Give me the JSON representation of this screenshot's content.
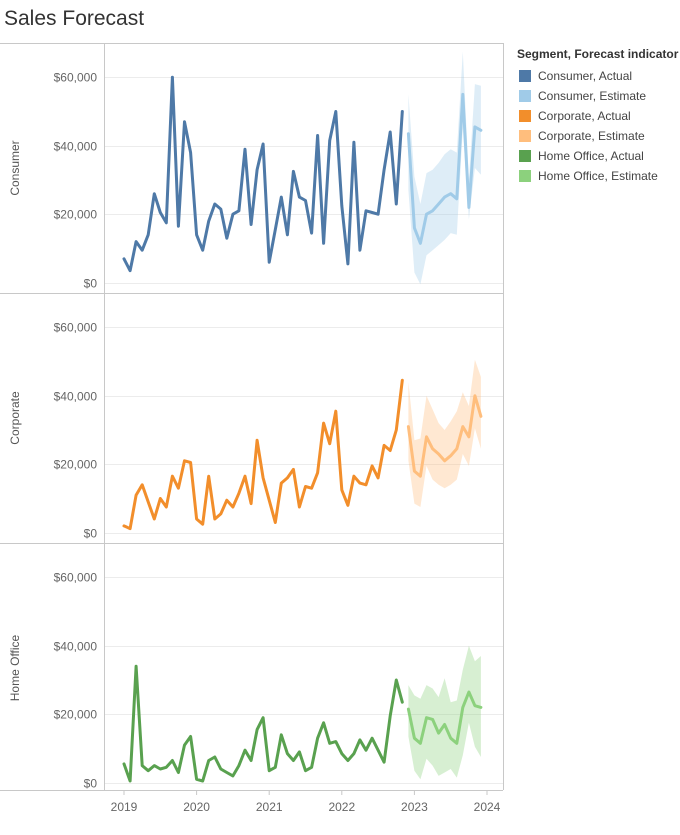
{
  "title": "Sales Forecast",
  "legend": {
    "title": "Segment, Forecast indicator",
    "items": [
      {
        "label": "Consumer, Actual",
        "color": "#4e79a7"
      },
      {
        "label": "Consumer, Estimate",
        "color": "#a0cbe8"
      },
      {
        "label": "Corporate, Actual",
        "color": "#f28e2b"
      },
      {
        "label": "Corporate, Estimate",
        "color": "#ffbe7d"
      },
      {
        "label": "Home Office, Actual",
        "color": "#59a14f"
      },
      {
        "label": "Home Office, Estimate",
        "color": "#8cd17d"
      }
    ]
  },
  "chart_data": {
    "type": "line",
    "title": "Sales Forecast",
    "x_tick_labels": [
      "2019",
      "2020",
      "2021",
      "2022",
      "2023",
      "2024"
    ],
    "xlim": [
      "2019-01",
      "2024-01"
    ],
    "y_tick_labels": [
      "$0",
      "$20,000",
      "$40,000",
      "$60,000"
    ],
    "y_ticks": [
      0,
      20000,
      40000,
      60000
    ],
    "ylim": [
      -3000,
      70000
    ],
    "grid": true,
    "legend_position": "right",
    "panels": [
      {
        "name": "Consumer",
        "actual": {
          "color": "#4e79a7",
          "x": [
            "2019-01",
            "2019-02",
            "2019-03",
            "2019-04",
            "2019-05",
            "2019-06",
            "2019-07",
            "2019-08",
            "2019-09",
            "2019-10",
            "2019-11",
            "2019-12",
            "2020-01",
            "2020-02",
            "2020-03",
            "2020-04",
            "2020-05",
            "2020-06",
            "2020-07",
            "2020-08",
            "2020-09",
            "2020-10",
            "2020-11",
            "2020-12",
            "2021-01",
            "2021-02",
            "2021-03",
            "2021-04",
            "2021-05",
            "2021-06",
            "2021-07",
            "2021-08",
            "2021-09",
            "2021-10",
            "2021-11",
            "2021-12",
            "2022-01",
            "2022-02",
            "2022-03",
            "2022-04",
            "2022-05",
            "2022-06",
            "2022-07",
            "2022-08",
            "2022-09",
            "2022-10",
            "2022-11",
            "2022-12"
          ],
          "y": [
            7000,
            3500,
            12000,
            9500,
            14000,
            26000,
            20500,
            17500,
            60000,
            16500,
            47000,
            38000,
            14000,
            9500,
            18000,
            23000,
            21500,
            13000,
            20000,
            21000,
            39000,
            17000,
            33000,
            40500,
            6000,
            15500,
            25000,
            14000,
            32500,
            25000,
            24000,
            14500,
            43000,
            11500,
            41500,
            50000,
            22500,
            5500,
            41000,
            9500,
            21000,
            20500,
            20000,
            33000,
            44000,
            23000,
            50000,
            null
          ]
        },
        "estimate": {
          "color": "#a0cbe8",
          "x": [
            "2022-12",
            "2023-01",
            "2023-02",
            "2023-03",
            "2023-04",
            "2023-05",
            "2023-06",
            "2023-07",
            "2023-08",
            "2023-09",
            "2023-10",
            "2023-11",
            "2023-12"
          ],
          "y": [
            43500,
            16000,
            11500,
            20000,
            21000,
            23000,
            25000,
            26000,
            24500,
            55000,
            22000,
            45500,
            44500
          ],
          "low": [
            27000,
            3000,
            -500,
            8000,
            9500,
            11000,
            12500,
            14500,
            14000,
            45000,
            18500,
            33500,
            31500
          ],
          "high": [
            55000,
            31000,
            23000,
            32000,
            33000,
            35000,
            37500,
            39000,
            38000,
            67500,
            30000,
            58000,
            57500
          ]
        }
      },
      {
        "name": "Corporate",
        "actual": {
          "color": "#f28e2b",
          "x": [
            "2019-01",
            "2019-02",
            "2019-03",
            "2019-04",
            "2019-05",
            "2019-06",
            "2019-07",
            "2019-08",
            "2019-09",
            "2019-10",
            "2019-11",
            "2019-12",
            "2020-01",
            "2020-02",
            "2020-03",
            "2020-04",
            "2020-05",
            "2020-06",
            "2020-07",
            "2020-08",
            "2020-09",
            "2020-10",
            "2020-11",
            "2020-12",
            "2021-01",
            "2021-02",
            "2021-03",
            "2021-04",
            "2021-05",
            "2021-06",
            "2021-07",
            "2021-08",
            "2021-09",
            "2021-10",
            "2021-11",
            "2021-12",
            "2022-01",
            "2022-02",
            "2022-03",
            "2022-04",
            "2022-05",
            "2022-06",
            "2022-07",
            "2022-08",
            "2022-09",
            "2022-10",
            "2022-11"
          ],
          "y": [
            2000,
            1200,
            11000,
            14000,
            9000,
            4000,
            10000,
            7500,
            16500,
            13000,
            21000,
            20500,
            4000,
            2500,
            16500,
            4000,
            5500,
            9500,
            7500,
            11500,
            16500,
            8500,
            27000,
            16000,
            9500,
            3000,
            14500,
            16000,
            18500,
            7500,
            13500,
            13000,
            17500,
            32000,
            26000,
            35500,
            12500,
            8000,
            16500,
            14500,
            14000,
            19500,
            16000,
            25500,
            24000,
            30000,
            44500
          ]
        },
        "estimate": {
          "color": "#ffbe7d",
          "x": [
            "2022-12",
            "2023-01",
            "2023-02",
            "2023-03",
            "2023-04",
            "2023-05",
            "2023-06",
            "2023-07",
            "2023-08",
            "2023-09",
            "2023-10",
            "2023-11",
            "2023-12"
          ],
          "y": [
            31000,
            18000,
            16500,
            28000,
            24500,
            23000,
            21000,
            22500,
            24500,
            31000,
            28000,
            40000,
            34000
          ],
          "low": [
            21000,
            8500,
            7500,
            19500,
            15500,
            14000,
            13000,
            14000,
            15500,
            23000,
            19500,
            30500,
            24500
          ],
          "high": [
            44000,
            27000,
            27500,
            40000,
            36000,
            32000,
            30000,
            32500,
            35500,
            41000,
            37000,
            50500,
            45500
          ]
        }
      },
      {
        "name": "Home Office",
        "actual": {
          "color": "#59a14f",
          "x": [
            "2019-01",
            "2019-02",
            "2019-03",
            "2019-04",
            "2019-05",
            "2019-06",
            "2019-07",
            "2019-08",
            "2019-09",
            "2019-10",
            "2019-11",
            "2019-12",
            "2020-01",
            "2020-02",
            "2020-03",
            "2020-04",
            "2020-05",
            "2020-06",
            "2020-07",
            "2020-08",
            "2020-09",
            "2020-10",
            "2020-11",
            "2020-12",
            "2021-01",
            "2021-02",
            "2021-03",
            "2021-04",
            "2021-05",
            "2021-06",
            "2021-07",
            "2021-08",
            "2021-09",
            "2021-10",
            "2021-11",
            "2021-12",
            "2022-01",
            "2022-02",
            "2022-03",
            "2022-04",
            "2022-05",
            "2022-06",
            "2022-07",
            "2022-08",
            "2022-09",
            "2022-10",
            "2022-11"
          ],
          "y": [
            5500,
            500,
            34000,
            5000,
            3500,
            5000,
            4000,
            4500,
            6500,
            3000,
            11000,
            13500,
            1000,
            500,
            6500,
            7500,
            4000,
            3000,
            2000,
            5000,
            9500,
            6500,
            15500,
            19000,
            3500,
            4500,
            14000,
            8500,
            6500,
            9000,
            3500,
            4500,
            13000,
            17500,
            11500,
            12000,
            8500,
            6500,
            8500,
            12500,
            9500,
            13000,
            9500,
            6000,
            19500,
            30000,
            23500
          ]
        },
        "estimate": {
          "color": "#8cd17d",
          "x": [
            "2022-12",
            "2023-01",
            "2023-02",
            "2023-03",
            "2023-04",
            "2023-05",
            "2023-06",
            "2023-07",
            "2023-08",
            "2023-09",
            "2023-10",
            "2023-11",
            "2023-12"
          ],
          "y": [
            21500,
            13000,
            11500,
            19000,
            18500,
            14500,
            17000,
            13000,
            11500,
            22000,
            26500,
            22500,
            22000
          ],
          "low": [
            13500,
            3500,
            1000,
            7000,
            5000,
            2000,
            3000,
            4000,
            1500,
            8000,
            17500,
            10500,
            7500
          ],
          "high": [
            28500,
            25500,
            24500,
            28500,
            27500,
            25000,
            30500,
            23500,
            24000,
            33000,
            40000,
            35500,
            37000
          ]
        }
      }
    ]
  }
}
